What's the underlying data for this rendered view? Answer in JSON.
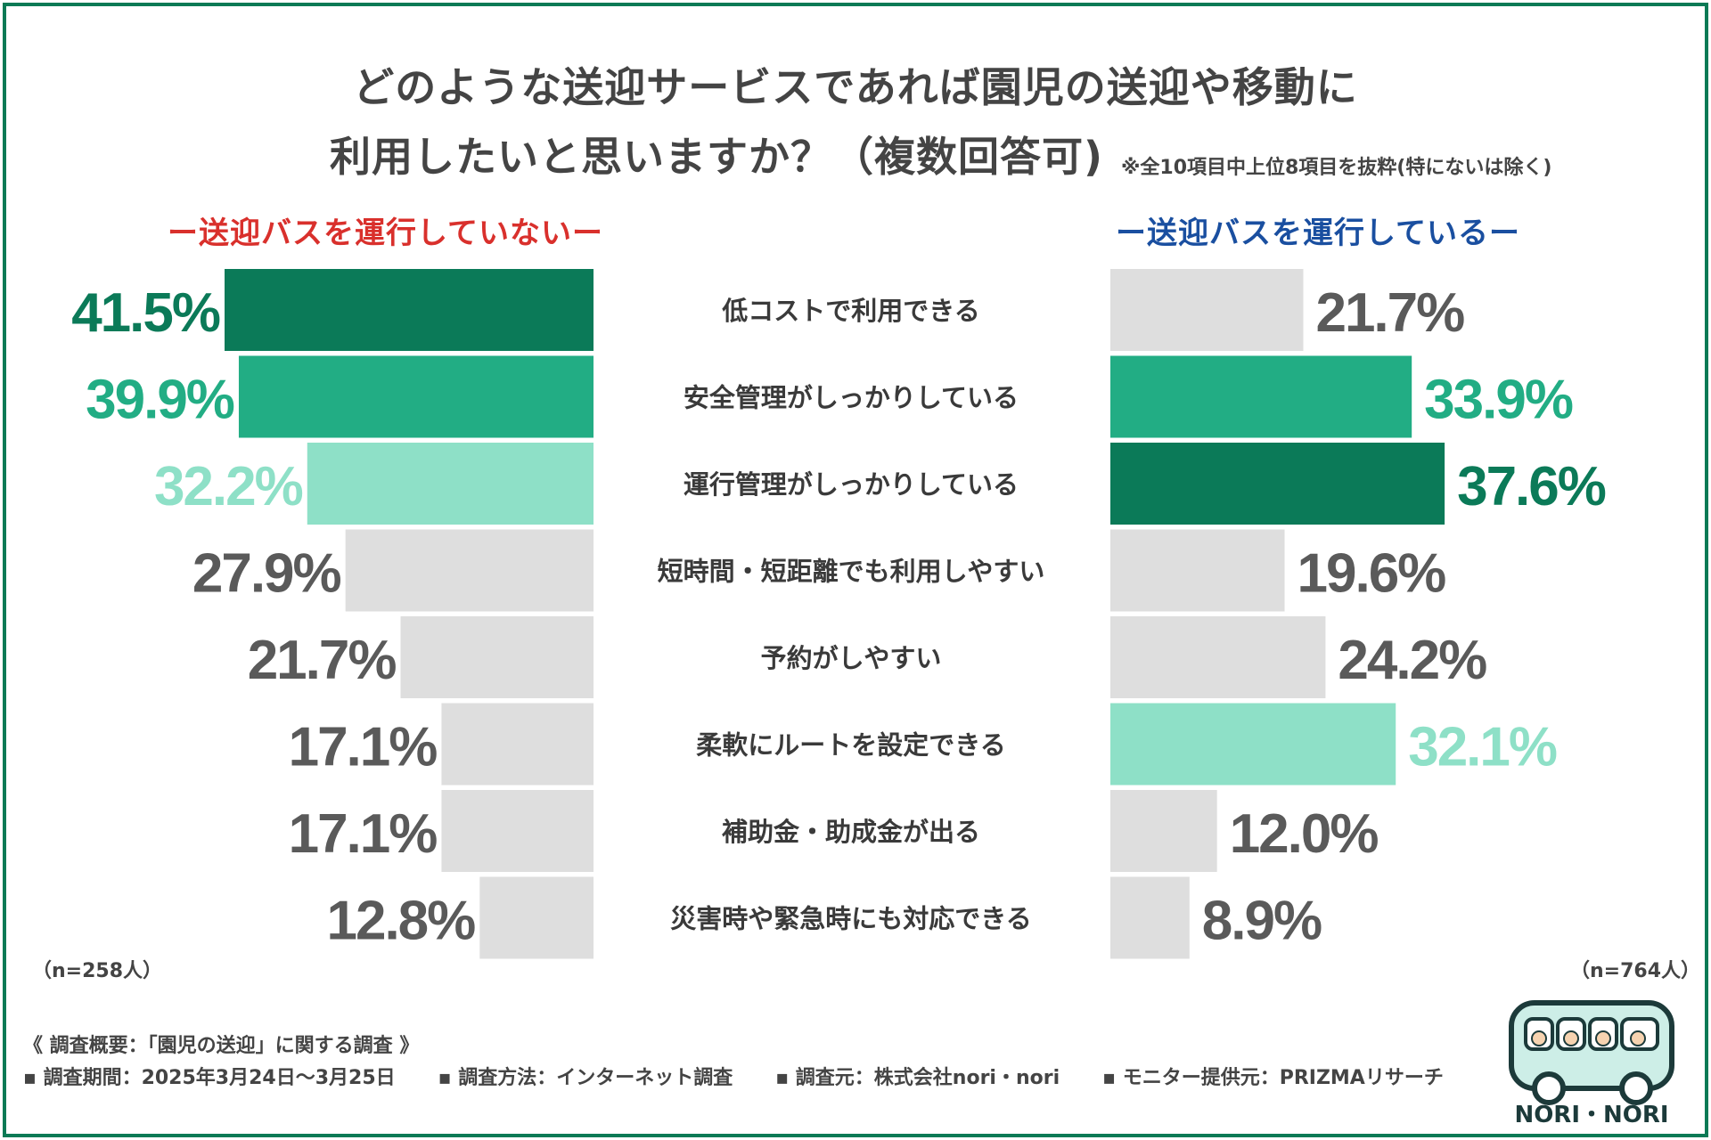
{
  "title_line1": "どのような送迎サービスであれば園児の送迎や移動に",
  "title_line2": "利用したいと思いますか？（複数回答可)",
  "title_note": "※全10項目中上位8項目を抜粋(特にないは除く)",
  "left_group_label": "ー送迎バスを運行していないー",
  "right_group_label": "ー送迎バスを運行しているー",
  "n_left": "（n=258人）",
  "n_right": "（n=764人）",
  "colors": {
    "rank1": "#0b7a58",
    "rank2": "#22ad84",
    "rank3": "#8ee0c7",
    "other_bar": "#dedede",
    "other_text": "#5a5a5a",
    "left_label": "#d9302c",
    "right_label": "#1a4fa0"
  },
  "chart_data": {
    "type": "bar",
    "orientation": "horizontal-butterfly",
    "unit": "%",
    "categories": [
      "低コストで利用できる",
      "安全管理がしっかりしている",
      "運行管理がしっかりしている",
      "短時間・短距離でも利用しやすい",
      "予約がしやすい",
      "柔軟にルートを設定できる",
      "補助金・助成金が出る",
      "災害時や緊急時にも対応できる"
    ],
    "series": [
      {
        "name": "送迎バスを運行していない",
        "values": [
          41.5,
          39.9,
          32.2,
          27.9,
          21.7,
          17.1,
          17.1,
          12.8
        ],
        "labels": [
          "41.5%",
          "39.9%",
          "32.2%",
          "27.9%",
          "21.7%",
          "17.1%",
          "17.1%",
          "12.8%"
        ],
        "ranks": [
          1,
          2,
          3,
          0,
          0,
          0,
          0,
          0
        ]
      },
      {
        "name": "送迎バスを運行している",
        "values": [
          21.7,
          33.9,
          37.6,
          19.6,
          24.2,
          32.1,
          12.0,
          8.9
        ],
        "labels": [
          "21.7%",
          "33.9%",
          "37.6%",
          "19.6%",
          "24.2%",
          "32.1%",
          "12.0%",
          "8.9%"
        ],
        "ranks": [
          0,
          2,
          1,
          0,
          0,
          3,
          0,
          0
        ]
      }
    ]
  },
  "footer": {
    "heading": "《 調査概要：「園児の送迎」に関する調査 》",
    "items": [
      "▪ 調査期間：2025年3月24日〜3月25日",
      "▪ 調査方法：インターネット調査",
      "▪ 調査元：株式会社nori・nori",
      "▪ モニター提供元：PRIZMAリサーチ"
    ]
  },
  "logo_text": "NORI・NORI"
}
